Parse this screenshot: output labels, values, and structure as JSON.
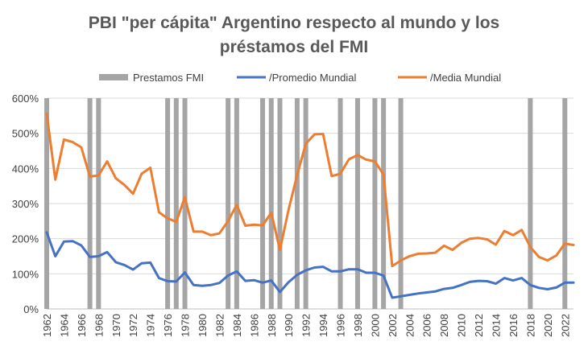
{
  "chart_data": {
    "type": "line",
    "title_lines": [
      "PBI \"per cápita\" Argentino respecto al mundo y los",
      "préstamos del FMI"
    ],
    "xlabel": "",
    "ylabel": "",
    "ylim": [
      0,
      600
    ],
    "yticks": [
      "0%",
      "100%",
      "200%",
      "300%",
      "400%",
      "500%",
      "600%"
    ],
    "xlim": [
      1962,
      2023
    ],
    "xticks": [
      "1962",
      "1964",
      "1966",
      "1968",
      "1970",
      "1972",
      "1974",
      "1976",
      "1978",
      "1980",
      "1982",
      "1984",
      "1986",
      "1988",
      "1990",
      "1992",
      "1994",
      "1996",
      "1998",
      "2000",
      "2002",
      "2004",
      "2006",
      "2008",
      "2010",
      "2012",
      "2014",
      "2016",
      "2018",
      "2020",
      "2022"
    ],
    "grid": true,
    "legend": "top-center",
    "x": [
      1962,
      1963,
      1964,
      1965,
      1966,
      1967,
      1968,
      1969,
      1970,
      1971,
      1972,
      1973,
      1974,
      1975,
      1976,
      1977,
      1978,
      1979,
      1980,
      1981,
      1982,
      1983,
      1984,
      1985,
      1986,
      1987,
      1988,
      1989,
      1990,
      1991,
      1992,
      1993,
      1994,
      1995,
      1996,
      1997,
      1998,
      1999,
      2000,
      2001,
      2002,
      2003,
      2004,
      2005,
      2006,
      2007,
      2008,
      2009,
      2010,
      2011,
      2012,
      2013,
      2014,
      2015,
      2016,
      2017,
      2018,
      2019,
      2020,
      2021,
      2022,
      2023
    ],
    "imf_loan_years": [
      1962,
      1967,
      1968,
      1976,
      1977,
      1978,
      1983,
      1984,
      1987,
      1988,
      1989,
      1991,
      1992,
      1996,
      1998,
      2000,
      2001,
      2003,
      2018,
      2022
    ],
    "series": [
      {
        "name": "Prestamos FMI",
        "kind": "vertical-bands",
        "color": "#a5a5a5"
      },
      {
        "name": "/Promedio Mundial",
        "color": "#4472c4",
        "values": [
          218,
          150,
          192,
          193,
          181,
          148,
          150,
          162,
          133,
          125,
          112,
          130,
          132,
          88,
          79,
          78,
          104,
          68,
          66,
          68,
          74,
          95,
          107,
          80,
          82,
          75,
          81,
          48,
          76,
          97,
          110,
          118,
          120,
          107,
          107,
          113,
          113,
          103,
          103,
          95,
          32,
          36,
          40,
          44,
          47,
          50,
          57,
          60,
          68,
          77,
          80,
          79,
          72,
          88,
          81,
          88,
          68,
          60,
          56,
          61,
          75,
          75
        ]
      },
      {
        "name": "/Media Mundial",
        "color": "#ed7d31",
        "values": [
          556,
          368,
          482,
          475,
          460,
          377,
          380,
          420,
          372,
          353,
          328,
          385,
          402,
          275,
          258,
          248,
          318,
          220,
          220,
          210,
          215,
          250,
          296,
          237,
          240,
          238,
          274,
          168,
          282,
          381,
          470,
          497,
          498,
          378,
          385,
          426,
          438,
          425,
          420,
          383,
          122,
          138,
          150,
          157,
          158,
          160,
          180,
          168,
          188,
          200,
          202,
          198,
          183,
          222,
          210,
          225,
          176,
          148,
          138,
          152,
          186,
          182
        ]
      }
    ]
  }
}
